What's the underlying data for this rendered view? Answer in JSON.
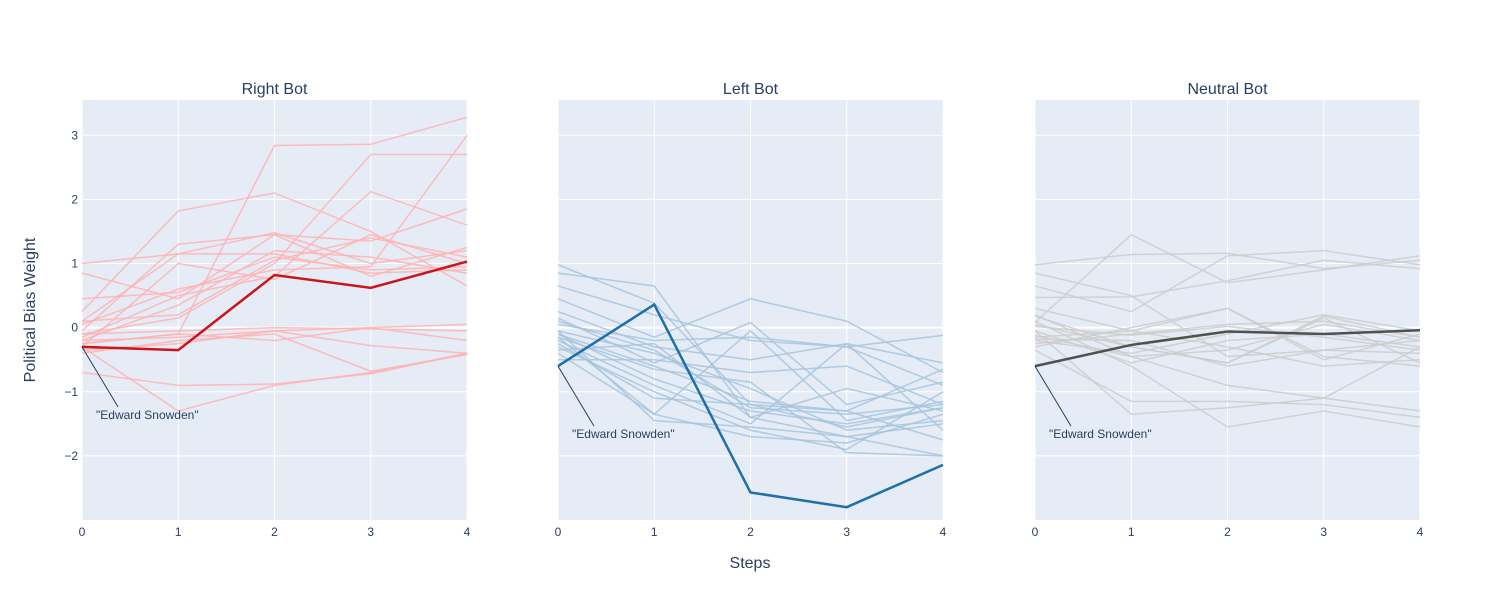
{
  "chart_data": {
    "type": "line",
    "ylabel": "Political Bias Weight",
    "xlabel": "Steps",
    "x": [
      0,
      1,
      2,
      3,
      4
    ],
    "xticks": [
      "0",
      "1",
      "2",
      "3",
      "4"
    ],
    "yticks": [
      "−2",
      "−1",
      "0",
      "1",
      "2",
      "3"
    ],
    "ylim": [
      -3.0,
      3.55
    ],
    "xlim": [
      0,
      4
    ],
    "grid": true,
    "shared_y": true,
    "panels": [
      {
        "title": "Right Bot",
        "background_color": "#ffb3b3",
        "highlight_color": "#c8161d",
        "highlight": {
          "name": "Edward Snowden",
          "values": [
            -0.3,
            -0.35,
            0.82,
            0.62,
            1.03
          ]
        },
        "annotation": "\"Edward Snowden\"",
        "background_series": [
          [
            1.0,
            1.15,
            1.15,
            0.85,
            0.9
          ],
          [
            0.85,
            0.45,
            1.45,
            1.35,
            1.85
          ],
          [
            0.45,
            0.55,
            1.1,
            0.9,
            0.95
          ],
          [
            0.25,
            1.82,
            2.1,
            1.5,
            0.65
          ],
          [
            0.1,
            1.15,
            1.48,
            1.0,
            1.2
          ],
          [
            -0.05,
            1.3,
            1.45,
            0.8,
            1.25
          ],
          [
            -0.15,
            0.5,
            0.8,
            2.12,
            1.6
          ],
          [
            -0.25,
            -0.1,
            2.84,
            2.86,
            3.28
          ],
          [
            -0.1,
            0.15,
            1.0,
            2.7,
            2.7
          ],
          [
            0.05,
            0.6,
            0.9,
            0.95,
            3.0
          ],
          [
            -0.2,
            0.35,
            1.2,
            1.1,
            0.85
          ],
          [
            -0.3,
            1.0,
            0.75,
            1.45,
            1.0
          ],
          [
            -0.1,
            -0.05,
            0.0,
            -0.02,
            -0.05
          ],
          [
            -0.2,
            -0.15,
            -0.05,
            0.0,
            0.05
          ],
          [
            -0.25,
            -0.1,
            -0.2,
            0.0,
            -0.2
          ],
          [
            -0.35,
            -0.25,
            -0.05,
            -0.28,
            -0.4
          ],
          [
            -0.4,
            -0.2,
            -0.1,
            -0.68,
            -0.42
          ],
          [
            -0.7,
            -0.9,
            -0.88,
            -0.72,
            -0.4
          ],
          [
            -0.3,
            -1.3,
            -0.9,
            -0.7,
            -0.4
          ],
          [
            0.1,
            0.2,
            1.05,
            1.4,
            1.1
          ]
        ]
      },
      {
        "title": "Left Bot",
        "background_color": "#a6c4dd",
        "highlight_color": "#1f6fa8",
        "highlight": {
          "name": "Edward Snowden",
          "values": [
            -0.6,
            0.36,
            -2.57,
            -2.8,
            -2.14
          ]
        },
        "annotation": "\"Edward Snowden\"",
        "background_series": [
          [
            0.98,
            0.38,
            -1.2,
            -1.55,
            -1.25
          ],
          [
            0.85,
            0.65,
            -1.4,
            -1.7,
            -2.0
          ],
          [
            0.65,
            0.2,
            -0.2,
            -0.3,
            -0.12
          ],
          [
            0.45,
            -0.15,
            0.45,
            0.1,
            -0.7
          ],
          [
            0.25,
            -0.3,
            -0.5,
            -0.25,
            -0.55
          ],
          [
            0.15,
            -0.55,
            0.08,
            -1.2,
            -0.85
          ],
          [
            0.05,
            -0.2,
            -0.15,
            -0.3,
            -0.9
          ],
          [
            -0.05,
            -0.4,
            -0.95,
            -1.6,
            -1.45
          ],
          [
            -0.1,
            -0.8,
            -1.3,
            -1.5,
            -1.25
          ],
          [
            -0.15,
            -1.35,
            -1.7,
            -1.8,
            -1.35
          ],
          [
            -0.2,
            -0.9,
            -1.5,
            -0.25,
            -1.6
          ],
          [
            -0.25,
            -1.1,
            -1.2,
            -1.3,
            -0.65
          ],
          [
            -0.3,
            -1.0,
            -1.6,
            -1.9,
            -1.0
          ],
          [
            -0.1,
            -0.6,
            -1.15,
            -1.3,
            -1.75
          ],
          [
            -0.4,
            -1.35,
            -0.05,
            -1.45,
            -1.15
          ],
          [
            -0.5,
            -0.5,
            -0.7,
            -0.6,
            -1.2
          ],
          [
            -0.05,
            -1.45,
            -1.55,
            -1.7,
            -1.5
          ],
          [
            0.1,
            -0.35,
            -1.25,
            -1.35,
            -1.2
          ],
          [
            -0.15,
            -0.65,
            -0.85,
            -1.95,
            -2.0
          ],
          [
            -0.35,
            -0.25,
            -1.4,
            -0.95,
            -1.3
          ]
        ]
      },
      {
        "title": "Neutral Bot",
        "background_color": "#cccccc",
        "highlight_color": "#505050",
        "highlight": {
          "name": "Edward Snowden",
          "values": [
            -0.6,
            -0.27,
            -0.06,
            -0.1,
            -0.04
          ]
        },
        "annotation": "\"Edward Snowden\"",
        "background_series": [
          [
            0.98,
            1.14,
            1.16,
            0.92,
            1.05
          ],
          [
            0.85,
            0.5,
            -0.45,
            -0.35,
            -0.2
          ],
          [
            0.65,
            0.25,
            1.12,
            1.2,
            0.98
          ],
          [
            0.47,
            0.48,
            0.73,
            1.05,
            0.92
          ],
          [
            0.3,
            -0.05,
            0.3,
            -0.45,
            -0.6
          ],
          [
            0.18,
            -0.3,
            -0.55,
            0.18,
            -0.15
          ],
          [
            0.08,
            1.45,
            0.7,
            0.9,
            1.12
          ],
          [
            0.02,
            -0.12,
            0.02,
            -0.15,
            -0.35
          ],
          [
            -0.05,
            -0.55,
            -0.2,
            -0.1,
            -0.3
          ],
          [
            -0.12,
            -0.45,
            -0.35,
            0.05,
            -0.2
          ],
          [
            -0.18,
            -0.2,
            -0.6,
            -0.35,
            -0.4
          ],
          [
            -0.25,
            -0.1,
            0.05,
            0.1,
            -0.15
          ],
          [
            -0.05,
            -1.35,
            -1.25,
            -1.1,
            -1.3
          ],
          [
            0.1,
            -0.6,
            -1.55,
            -1.3,
            -1.55
          ],
          [
            -0.35,
            -1.15,
            -1.15,
            -1.2,
            -1.4
          ],
          [
            -0.2,
            -0.4,
            -0.1,
            0.2,
            -0.05
          ],
          [
            -0.15,
            -0.05,
            -0.3,
            -0.6,
            -0.5
          ],
          [
            0.05,
            -0.3,
            -0.55,
            0.15,
            -0.55
          ],
          [
            -0.3,
            0.0,
            0.3,
            -0.5,
            -0.1
          ],
          [
            0.2,
            -0.45,
            -0.9,
            -1.1,
            -0.3
          ]
        ]
      }
    ]
  }
}
